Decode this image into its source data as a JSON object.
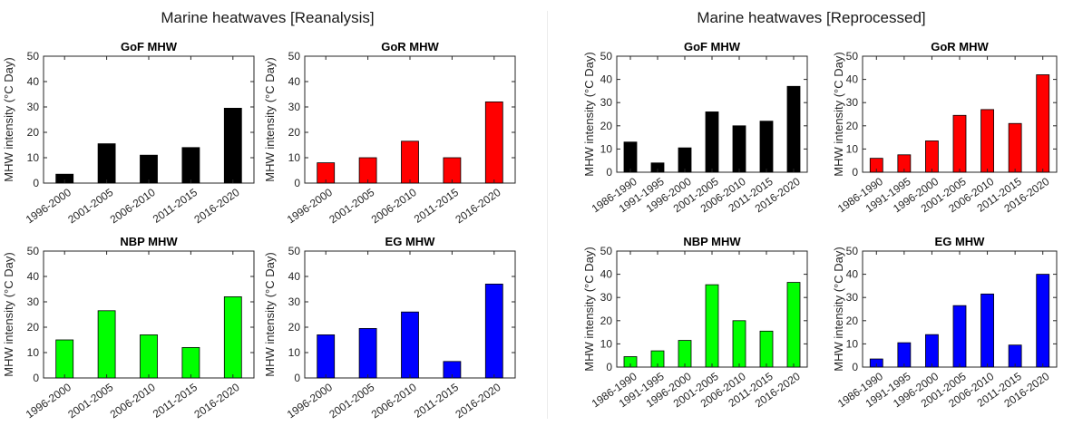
{
  "panels": [
    {
      "title": "Marine heatwaves [Reanalysis]"
    },
    {
      "title": "Marine heatwaves [Reprocessed]"
    }
  ],
  "chart_data": [
    {
      "type": "bar",
      "panel": 0,
      "title": "GoF MHW",
      "xlabel": "",
      "ylabel": "MHW intensity (°C Day)",
      "ylim": [
        0,
        50
      ],
      "yticks": [
        0,
        10,
        20,
        30,
        40,
        50
      ],
      "color": "#000000",
      "categories": [
        "1996-2000",
        "2001-2005",
        "2006-2010",
        "2011-2015",
        "2016-2020"
      ],
      "values": [
        3.5,
        15.5,
        11,
        14,
        29.5
      ]
    },
    {
      "type": "bar",
      "panel": 0,
      "title": "GoR MHW",
      "xlabel": "",
      "ylabel": "MHW intensity (°C Day)",
      "ylim": [
        0,
        50
      ],
      "yticks": [
        0,
        10,
        20,
        30,
        40,
        50
      ],
      "color": "#ff0000",
      "categories": [
        "1996-2000",
        "2001-2005",
        "2006-2010",
        "2011-2015",
        "2016-2020"
      ],
      "values": [
        8,
        10,
        16.5,
        10,
        32
      ]
    },
    {
      "type": "bar",
      "panel": 0,
      "title": "NBP MHW",
      "xlabel": "",
      "ylabel": "MHW intensity (°C Day)",
      "ylim": [
        0,
        50
      ],
      "yticks": [
        0,
        10,
        20,
        30,
        40,
        50
      ],
      "color": "#00ff00",
      "categories": [
        "1996-2000",
        "2001-2005",
        "2006-2010",
        "2011-2015",
        "2016-2020"
      ],
      "values": [
        15,
        26.5,
        17,
        12,
        32
      ]
    },
    {
      "type": "bar",
      "panel": 0,
      "title": "EG MHW",
      "xlabel": "",
      "ylabel": "MHW intensity (°C Day)",
      "ylim": [
        0,
        50
      ],
      "yticks": [
        0,
        10,
        20,
        30,
        40,
        50
      ],
      "color": "#0000ff",
      "categories": [
        "1996-2000",
        "2001-2005",
        "2006-2010",
        "2011-2015",
        "2016-2020"
      ],
      "values": [
        17,
        19.5,
        26,
        6.5,
        37
      ]
    },
    {
      "type": "bar",
      "panel": 1,
      "title": "GoF MHW",
      "xlabel": "",
      "ylabel": "MHW intensity (°C Day)",
      "ylim": [
        0,
        50
      ],
      "yticks": [
        0,
        10,
        20,
        30,
        40,
        50
      ],
      "color": "#000000",
      "categories": [
        "1986-1990",
        "1991-1995",
        "1996-2000",
        "2001-2005",
        "2006-2010",
        "2011-2015",
        "2016-2020"
      ],
      "values": [
        13,
        4,
        10.5,
        26,
        20,
        22,
        37
      ]
    },
    {
      "type": "bar",
      "panel": 1,
      "title": "GoR MHW",
      "xlabel": "",
      "ylabel": "MHW intensity (°C Day)",
      "ylim": [
        0,
        50
      ],
      "yticks": [
        0,
        10,
        20,
        30,
        40,
        50
      ],
      "color": "#ff0000",
      "categories": [
        "1986-1990",
        "1991-1995",
        "1996-2000",
        "2001-2005",
        "2006-2010",
        "2011-2015",
        "2016-2020"
      ],
      "values": [
        6,
        7.5,
        13.5,
        24.5,
        27,
        21,
        42
      ]
    },
    {
      "type": "bar",
      "panel": 1,
      "title": "NBP MHW",
      "xlabel": "",
      "ylabel": "MHW intensity (°C Day)",
      "ylim": [
        0,
        50
      ],
      "yticks": [
        0,
        10,
        20,
        30,
        40,
        50
      ],
      "color": "#00ff00",
      "categories": [
        "1986-1990",
        "1991-1995",
        "1996-2000",
        "2001-2005",
        "2006-2010",
        "2011-2015",
        "2016-2020"
      ],
      "values": [
        4.5,
        7,
        11.5,
        35.5,
        20,
        15.5,
        36.5
      ]
    },
    {
      "type": "bar",
      "panel": 1,
      "title": "EG MHW",
      "xlabel": "",
      "ylabel": "MHW intensity (°C Day)",
      "ylim": [
        0,
        50
      ],
      "yticks": [
        0,
        10,
        20,
        30,
        40,
        50
      ],
      "color": "#0000ff",
      "categories": [
        "1986-1990",
        "1991-1995",
        "1996-2000",
        "2001-2005",
        "2006-2010",
        "2011-2015",
        "2016-2020"
      ],
      "values": [
        3.5,
        10.5,
        14,
        26.5,
        31.5,
        9.5,
        40
      ]
    }
  ]
}
